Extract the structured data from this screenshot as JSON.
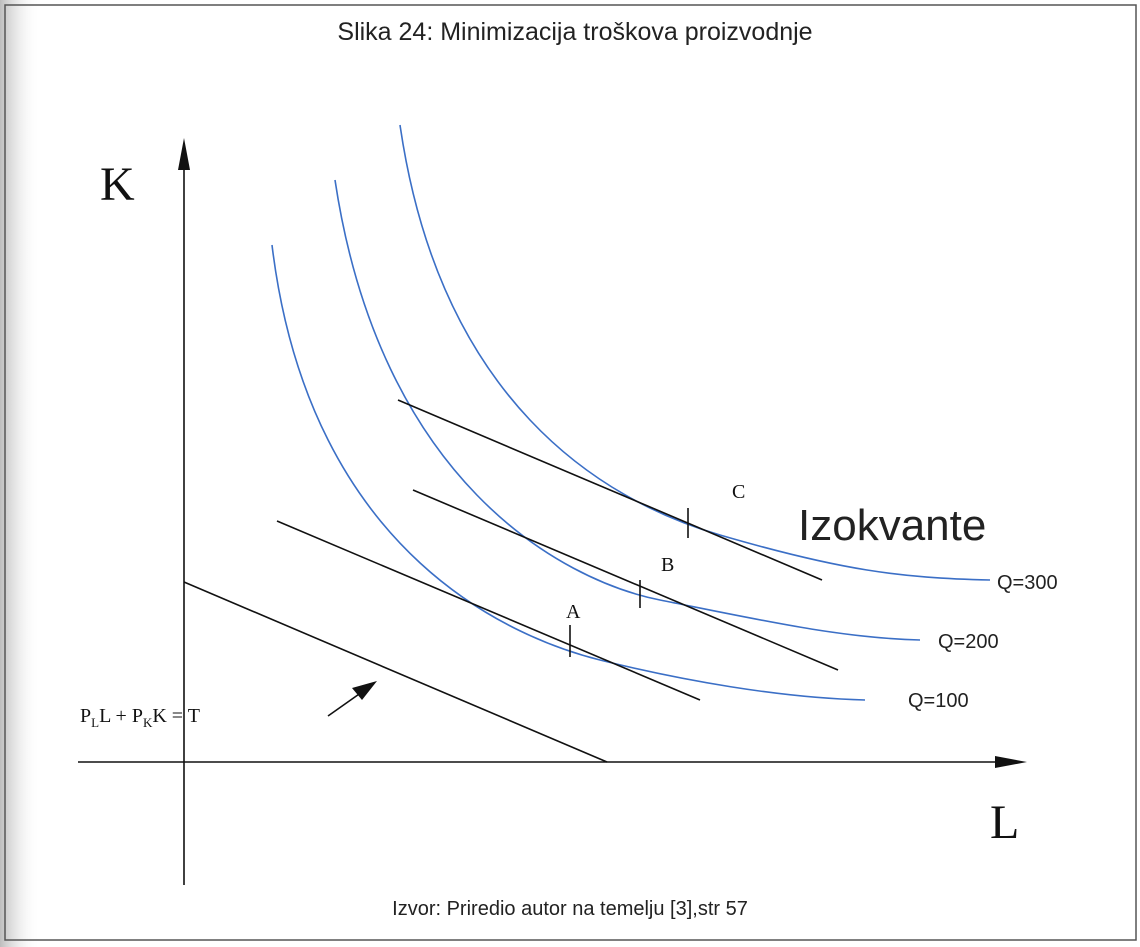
{
  "title": "Slika 24: Minimizacija troškova proizvodnje",
  "axes": {
    "y": "K",
    "x": "L"
  },
  "points": [
    "A",
    "B",
    "C"
  ],
  "curve_group_label": "Izokvante",
  "curves": [
    "Q=100",
    "Q=200",
    "Q=300"
  ],
  "equation": [
    "P",
    "L",
    "L + P",
    "K",
    "K = T"
  ],
  "source": "Izvor: Priredio autor na temelju [3],str 57"
}
